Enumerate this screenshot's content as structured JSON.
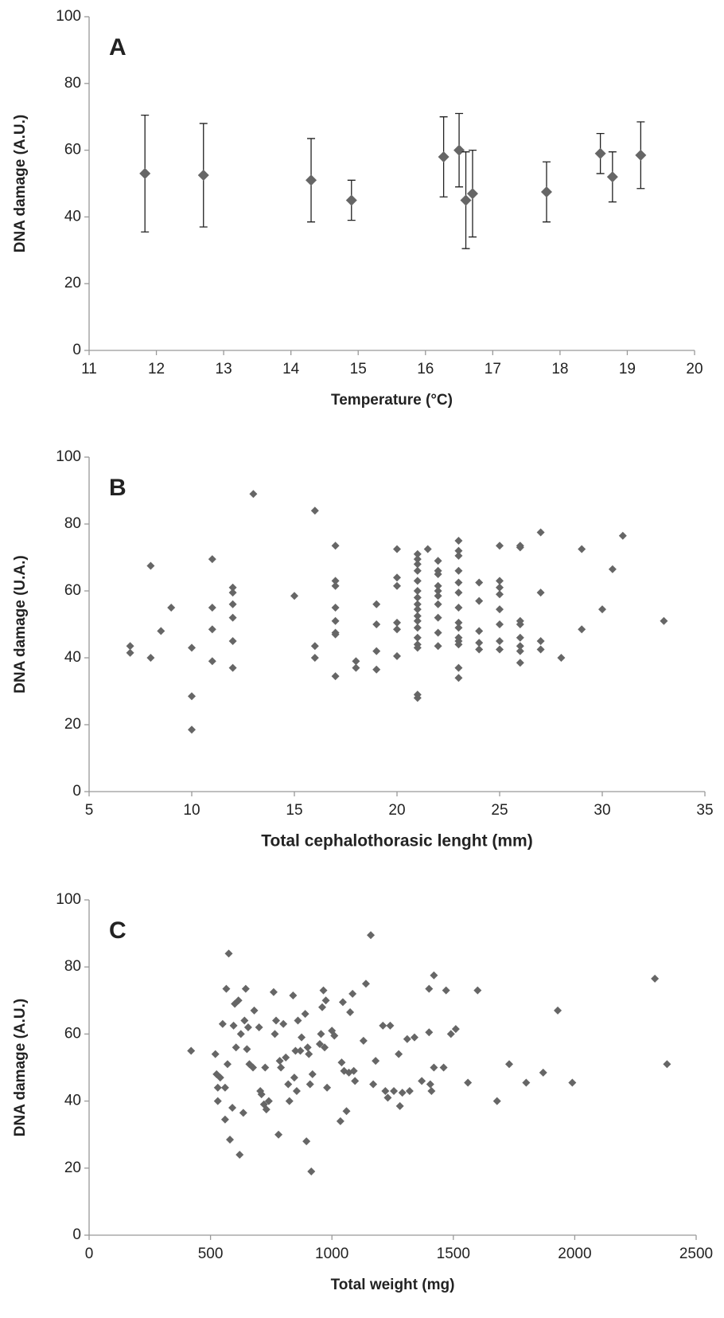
{
  "chart_data": [
    {
      "type": "scatter",
      "annotation": "A",
      "xlabel": "Temperature (°C)",
      "ylabel": "DNA damage (A.U.)",
      "xlim": [
        11,
        20
      ],
      "xticks": [
        11,
        12,
        13,
        14,
        15,
        16,
        17,
        18,
        19,
        20
      ],
      "ylim": [
        0,
        100
      ],
      "yticks": [
        0,
        20,
        40,
        60,
        80,
        100
      ],
      "series": [
        {
          "color": "#666666",
          "x": [
            11.83,
            12.7,
            14.3,
            14.9,
            16.27,
            16.5,
            16.6,
            16.7,
            17.8,
            18.6,
            18.78,
            19.2
          ],
          "values": [
            53,
            52.5,
            51,
            45,
            58,
            60,
            45,
            47,
            47.5,
            59,
            52,
            58.5
          ],
          "errors": [
            17.5,
            15.5,
            12.5,
            6,
            12,
            11,
            14.5,
            13,
            9,
            6,
            7.5,
            10
          ]
        }
      ]
    },
    {
      "type": "scatter",
      "annotation": "B",
      "xlabel": "Total cephalothorasic lenght (mm)",
      "ylabel": "DNA damage (U.A.)",
      "xlim": [
        5,
        35
      ],
      "xticks": [
        5,
        10,
        15,
        20,
        25,
        30,
        35
      ],
      "ylim": [
        0,
        100
      ],
      "yticks": [
        0,
        20,
        40,
        60,
        80,
        100
      ],
      "series": [
        {
          "color": "#666666",
          "x": [
            7,
            7,
            8,
            8,
            8.5,
            9,
            10,
            10,
            10,
            11,
            11,
            11,
            11,
            12,
            12,
            12,
            12,
            12,
            12,
            13,
            15,
            16,
            16,
            16,
            17,
            17,
            17,
            17,
            17,
            17,
            17,
            17,
            18,
            18,
            19,
            19,
            19,
            19,
            20,
            20,
            20,
            20,
            20,
            20,
            21,
            21,
            21,
            21,
            21,
            21,
            21,
            21,
            21,
            21,
            21,
            21,
            21,
            21,
            21,
            21,
            21,
            21.5,
            22,
            22,
            22,
            22,
            22,
            22,
            22,
            22,
            22,
            22,
            23,
            23,
            23,
            23,
            23,
            23,
            23,
            23,
            23,
            23,
            23,
            23,
            23,
            23,
            24,
            24,
            24,
            24,
            24,
            25,
            25,
            25,
            25,
            25,
            25,
            25,
            25,
            26,
            26,
            26,
            26,
            26,
            26,
            26,
            26,
            27,
            27,
            27,
            27,
            28,
            29,
            29,
            30,
            30.5,
            31,
            33
          ],
          "values": [
            43.5,
            41.5,
            67.5,
            40,
            48,
            55,
            43,
            28.5,
            18.5,
            69.5,
            55,
            48.5,
            39,
            61,
            59.5,
            56,
            52,
            45,
            37,
            89,
            58.5,
            84,
            43.5,
            40,
            73.5,
            63,
            61.5,
            55,
            51,
            47.5,
            47,
            34.5,
            39,
            37,
            56,
            50,
            42,
            36.5,
            72.5,
            64,
            61.5,
            50.5,
            48.5,
            40.5,
            71,
            69.5,
            68,
            66,
            63,
            60,
            58,
            56,
            54.5,
            52.5,
            51,
            49,
            46,
            44,
            43,
            29,
            28,
            72.5,
            69,
            66,
            65,
            61.5,
            60,
            58.5,
            56,
            52,
            47.5,
            43.5,
            75,
            72,
            70.5,
            66,
            62.5,
            59.5,
            55,
            50.5,
            49,
            46,
            45,
            44,
            37,
            34,
            62.5,
            57,
            48,
            44.5,
            42.5,
            73.5,
            63,
            61,
            59,
            54.5,
            50,
            45,
            42.5,
            73.5,
            73,
            51,
            50,
            46,
            43.5,
            42,
            38.5,
            77.5,
            59.5,
            45,
            42.5,
            40,
            72.5,
            48.5,
            54.5,
            66.5,
            76.5,
            51
          ]
        }
      ]
    },
    {
      "type": "scatter",
      "annotation": "C",
      "xlabel": "Total weight (mg)",
      "ylabel": "DNA damage (A.U.)",
      "xlim": [
        0,
        2500
      ],
      "xticks": [
        0,
        500,
        1000,
        1500,
        2000,
        2500
      ],
      "ylim": [
        0,
        100
      ],
      "yticks": [
        0,
        20,
        40,
        60,
        80,
        100
      ],
      "series": [
        {
          "color": "#666666",
          "x": [
            420,
            520,
            525,
            530,
            530,
            540,
            550,
            560,
            560,
            565,
            570,
            575,
            580,
            590,
            595,
            600,
            605,
            615,
            620,
            625,
            635,
            640,
            645,
            650,
            655,
            660,
            675,
            680,
            700,
            705,
            710,
            720,
            725,
            730,
            740,
            760,
            765,
            770,
            780,
            785,
            790,
            800,
            810,
            820,
            825,
            840,
            845,
            850,
            855,
            860,
            870,
            875,
            890,
            895,
            900,
            905,
            910,
            915,
            920,
            950,
            955,
            960,
            965,
            970,
            975,
            980,
            1000,
            1010,
            1035,
            1040,
            1045,
            1050,
            1060,
            1070,
            1075,
            1085,
            1090,
            1095,
            1130,
            1140,
            1160,
            1170,
            1180,
            1210,
            1220,
            1230,
            1240,
            1255,
            1275,
            1280,
            1290,
            1310,
            1320,
            1340,
            1370,
            1400,
            1400,
            1405,
            1410,
            1420,
            1420,
            1460,
            1470,
            1490,
            1510,
            1560,
            1600,
            1680,
            1730,
            1800,
            1870,
            1930,
            1990,
            2330,
            2380
          ],
          "values": [
            55,
            54,
            48,
            44,
            40,
            47,
            63,
            44,
            34.5,
            73.5,
            51,
            84,
            28.5,
            38,
            62.5,
            69,
            56,
            70,
            24,
            60,
            36.5,
            64,
            73.5,
            55.5,
            62,
            51,
            50,
            67,
            62,
            43,
            42,
            39,
            50,
            37.5,
            40,
            72.5,
            60,
            64,
            30,
            52,
            50,
            63,
            53,
            45,
            40,
            71.5,
            47,
            55,
            43,
            64,
            55,
            59,
            66,
            28,
            56,
            54,
            45,
            19,
            48,
            57,
            60,
            68,
            73,
            56,
            70,
            44,
            61,
            59.5,
            34,
            51.5,
            69.5,
            49,
            37,
            48.5,
            66.5,
            72,
            49,
            46,
            58,
            75,
            89.5,
            45,
            52,
            62.5,
            43,
            41,
            62.5,
            43,
            54,
            38.5,
            42.5,
            58.5,
            43,
            59,
            46,
            60.5,
            73.5,
            45,
            43,
            77.5,
            50,
            50,
            73,
            60,
            61.5,
            45.5,
            73,
            40,
            51,
            45.5,
            48.5,
            67,
            45.5,
            76.5,
            51
          ]
        }
      ]
    }
  ]
}
